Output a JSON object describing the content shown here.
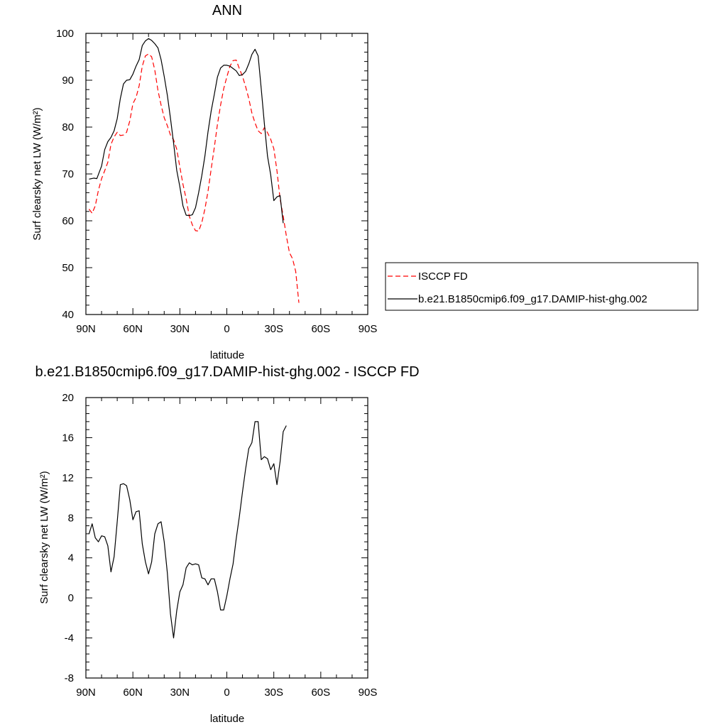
{
  "chart_data": [
    {
      "type": "line",
      "title": "ANN",
      "xlabel": "latitude",
      "ylabel": "Surf clearsky net LW (W/m²)",
      "xlim": [
        -90,
        90
      ],
      "ylim": [
        40,
        100
      ],
      "x_ticks": [
        -90,
        -60,
        -30,
        0,
        30,
        60,
        90
      ],
      "x_tick_labels": [
        "90N",
        "60N",
        "30N",
        "0",
        "30S",
        "60S",
        "90S"
      ],
      "y_ticks": [
        40,
        50,
        60,
        70,
        80,
        90,
        100
      ],
      "y_tick_labels": [
        "40",
        "50",
        "60",
        "70",
        "80",
        "90",
        "100"
      ],
      "legend_position": "right",
      "series": [
        {
          "name": "ISCCP FD",
          "color": "#ff0000",
          "dash": "dashed",
          "points": [
            [
              -88,
              62.5
            ],
            [
              -86,
              61.6
            ],
            [
              -84,
              63.2
            ],
            [
              -82,
              66.5
            ],
            [
              -80,
              69.0
            ],
            [
              -78,
              70.7
            ],
            [
              -76,
              72.5
            ],
            [
              -74,
              76.3
            ],
            [
              -72,
              77.9
            ],
            [
              -70,
              78.9
            ],
            [
              -68,
              78.2
            ],
            [
              -66,
              78.3
            ],
            [
              -64,
              78.9
            ],
            [
              -62,
              81.3
            ],
            [
              -60,
              85.0
            ],
            [
              -58,
              86.3
            ],
            [
              -56,
              88.8
            ],
            [
              -54,
              93.0
            ],
            [
              -52,
              95.2
            ],
            [
              -50,
              95.6
            ],
            [
              -48,
              95.0
            ],
            [
              -46,
              92.2
            ],
            [
              -44,
              87.8
            ],
            [
              -42,
              84.7
            ],
            [
              -40,
              82.0
            ],
            [
              -38,
              80.3
            ],
            [
              -36,
              78.3
            ],
            [
              -34,
              77.3
            ],
            [
              -32,
              75.3
            ],
            [
              -30,
              71.5
            ],
            [
              -28,
              67.8
            ],
            [
              -26,
              64.7
            ],
            [
              -24,
              61.0
            ],
            [
              -22,
              59.1
            ],
            [
              -20,
              57.9
            ],
            [
              -18,
              57.8
            ],
            [
              -16,
              59.6
            ],
            [
              -14,
              62.5
            ],
            [
              -12,
              66.3
            ],
            [
              -10,
              71.0
            ],
            [
              -8,
              75.7
            ],
            [
              -6,
              80.6
            ],
            [
              -4,
              84.7
            ],
            [
              -2,
              88.2
            ],
            [
              0,
              90.7
            ],
            [
              2,
              93.0
            ],
            [
              4,
              94.2
            ],
            [
              6,
              94.3
            ],
            [
              8,
              92.5
            ],
            [
              10,
              90.8
            ],
            [
              12,
              88.6
            ],
            [
              14,
              86.1
            ],
            [
              16,
              83.0
            ],
            [
              18,
              80.9
            ],
            [
              20,
              79.2
            ],
            [
              22,
              78.6
            ],
            [
              24,
              79.9
            ],
            [
              26,
              78.8
            ],
            [
              28,
              77.4
            ],
            [
              30,
              75.4
            ],
            [
              32,
              70.7
            ],
            [
              34,
              64.7
            ],
            [
              36,
              61.0
            ],
            [
              38,
              56.8
            ],
            [
              40,
              53.2
            ],
            [
              42,
              51.9
            ],
            [
              44,
              49.2
            ],
            [
              46,
              42.5
            ]
          ],
          "note_x": "x in latitude degrees: negative = N, positive = S"
        },
        {
          "name": "b.e21.B1850cmip6.f09_g17.DAMIP-hist-ghg.002",
          "color": "#000000",
          "dash": "solid",
          "points": [
            [
              -88,
              68.9
            ],
            [
              -85,
              69.1
            ],
            [
              -83,
              69.0
            ],
            [
              -80,
              71.7
            ],
            [
              -78,
              75.2
            ],
            [
              -76,
              76.9
            ],
            [
              -74,
              77.8
            ],
            [
              -72,
              79.2
            ],
            [
              -70,
              81.8
            ],
            [
              -68,
              86.1
            ],
            [
              -66,
              89.2
            ],
            [
              -64,
              90.0
            ],
            [
              -62,
              90.1
            ],
            [
              -60,
              91.3
            ],
            [
              -58,
              93.0
            ],
            [
              -56,
              94.4
            ],
            [
              -54,
              97.4
            ],
            [
              -52,
              98.4
            ],
            [
              -50,
              98.9
            ],
            [
              -48,
              98.5
            ],
            [
              -46,
              97.8
            ],
            [
              -44,
              96.9
            ],
            [
              -42,
              94.4
            ],
            [
              -40,
              90.8
            ],
            [
              -38,
              86.8
            ],
            [
              -36,
              81.9
            ],
            [
              -34,
              76.6
            ],
            [
              -32,
              70.8
            ],
            [
              -30,
              67.3
            ],
            [
              -28,
              63.2
            ],
            [
              -26,
              61.2
            ],
            [
              -24,
              61.1
            ],
            [
              -22,
              61.3
            ],
            [
              -20,
              62.8
            ],
            [
              -18,
              66.0
            ],
            [
              -16,
              69.6
            ],
            [
              -14,
              73.8
            ],
            [
              -12,
              79.0
            ],
            [
              -10,
              83.4
            ],
            [
              -8,
              87.0
            ],
            [
              -6,
              90.7
            ],
            [
              -4,
              92.6
            ],
            [
              -2,
              93.2
            ],
            [
              0,
              93.2
            ],
            [
              2,
              93.0
            ],
            [
              4,
              92.5
            ],
            [
              6,
              92.0
            ],
            [
              8,
              91.0
            ],
            [
              10,
              91.2
            ],
            [
              12,
              91.9
            ],
            [
              14,
              93.5
            ],
            [
              16,
              95.5
            ],
            [
              18,
              96.6
            ],
            [
              20,
              95.2
            ],
            [
              22,
              88.1
            ],
            [
              24,
              80.7
            ],
            [
              26,
              73.8
            ],
            [
              28,
              69.8
            ],
            [
              30,
              64.3
            ],
            [
              32,
              65.1
            ],
            [
              34,
              65.4
            ],
            [
              36,
              59.5
            ]
          ],
          "note_x": "x in latitude degrees: negative = N, positive = S"
        }
      ]
    },
    {
      "type": "line",
      "title": "b.e21.B1850cmip6.f09_g17.DAMIP-hist-ghg.002 - ISCCP FD",
      "xlabel": "latitude",
      "ylabel": "Surf clearsky net LW (W/m²)",
      "xlim": [
        -90,
        90
      ],
      "ylim": [
        -8,
        20
      ],
      "x_ticks": [
        -90,
        -60,
        -30,
        0,
        30,
        60,
        90
      ],
      "x_tick_labels": [
        "90N",
        "60N",
        "30N",
        "0",
        "30S",
        "60S",
        "90S"
      ],
      "y_ticks": [
        -8,
        -4,
        0,
        4,
        8,
        12,
        16,
        20
      ],
      "y_tick_labels": [
        "-8",
        "-4",
        "0",
        "4",
        "8",
        "12",
        "16",
        "20"
      ],
      "series": [
        {
          "color": "#000000",
          "dash": "solid",
          "points": [
            [
              -88,
              6.4
            ],
            [
              -86,
              7.4
            ],
            [
              -84,
              6.0
            ],
            [
              -82,
              5.6
            ],
            [
              -80,
              6.2
            ],
            [
              -78,
              6.1
            ],
            [
              -76,
              5.2
            ],
            [
              -74,
              2.6
            ],
            [
              -72,
              4.1
            ],
            [
              -70,
              7.6
            ],
            [
              -68,
              11.3
            ],
            [
              -66,
              11.4
            ],
            [
              -64,
              11.2
            ],
            [
              -62,
              9.8
            ],
            [
              -60,
              7.8
            ],
            [
              -58,
              8.6
            ],
            [
              -56,
              8.7
            ],
            [
              -54,
              5.4
            ],
            [
              -52,
              3.6
            ],
            [
              -50,
              2.4
            ],
            [
              -48,
              3.6
            ],
            [
              -46,
              6.4
            ],
            [
              -44,
              7.4
            ],
            [
              -42,
              7.6
            ],
            [
              -40,
              5.6
            ],
            [
              -38,
              2.5
            ],
            [
              -36,
              -1.6
            ],
            [
              -34,
              -4.0
            ],
            [
              -32,
              -1.3
            ],
            [
              -30,
              0.6
            ],
            [
              -28,
              1.3
            ],
            [
              -26,
              3.0
            ],
            [
              -24,
              3.5
            ],
            [
              -22,
              3.3
            ],
            [
              -20,
              3.4
            ],
            [
              -18,
              3.3
            ],
            [
              -16,
              2.0
            ],
            [
              -14,
              1.9
            ],
            [
              -12,
              1.3
            ],
            [
              -10,
              1.9
            ],
            [
              -8,
              1.9
            ],
            [
              -6,
              0.6
            ],
            [
              -4,
              -1.2
            ],
            [
              -2,
              -1.2
            ],
            [
              0,
              0.2
            ],
            [
              2,
              1.9
            ],
            [
              4,
              3.4
            ],
            [
              6,
              5.9
            ],
            [
              8,
              8.1
            ],
            [
              10,
              10.6
            ],
            [
              12,
              12.9
            ],
            [
              14,
              14.9
            ],
            [
              16,
              15.5
            ],
            [
              18,
              17.6
            ],
            [
              20,
              17.6
            ],
            [
              22,
              13.8
            ],
            [
              24,
              14.1
            ],
            [
              26,
              13.9
            ],
            [
              28,
              12.8
            ],
            [
              30,
              13.4
            ],
            [
              32,
              11.3
            ],
            [
              34,
              13.6
            ],
            [
              36,
              16.6
            ],
            [
              38,
              17.2
            ]
          ],
          "note_x": "x in latitude degrees: negative = N, positive = S"
        }
      ]
    }
  ]
}
